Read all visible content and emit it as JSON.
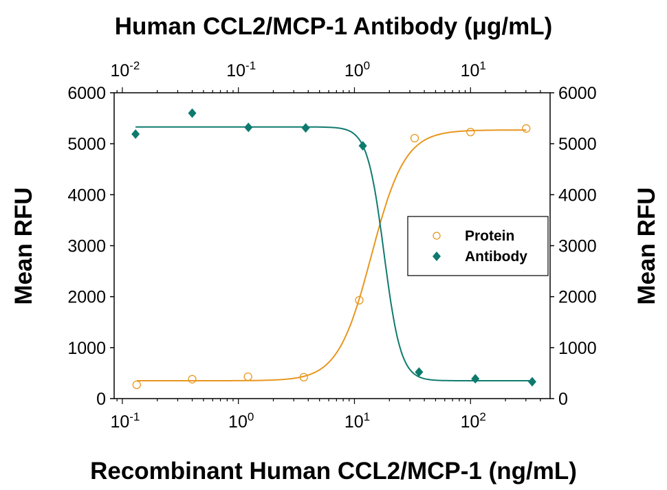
{
  "chart_data": {
    "type": "scatter",
    "title": "Human CCL2/MCP-1 Antibody (μg/mL)",
    "xlabel": "Recombinant Human CCL2/MCP-1 (ng/mL)",
    "ylabel": "Mean RFU",
    "ylabel_right": "Mean RFU",
    "xscale": "log",
    "xlim": [
      0.085,
      485
    ],
    "top_xlim": [
      0.0085,
      48.5
    ],
    "ylim": [
      0,
      6000
    ],
    "yticks": [
      "0",
      "1000",
      "2000",
      "3000",
      "4000",
      "5000",
      "6000"
    ],
    "xticks": [
      {
        "base": "10",
        "exp": "-1",
        "v": 0.1
      },
      {
        "base": "10",
        "exp": "0",
        "v": 1
      },
      {
        "base": "10",
        "exp": "1",
        "v": 10
      },
      {
        "base": "10",
        "exp": "2",
        "v": 100
      }
    ],
    "top_xticks": [
      {
        "base": "10",
        "exp": "-2",
        "v": 0.01
      },
      {
        "base": "10",
        "exp": "-1",
        "v": 0.1
      },
      {
        "base": "10",
        "exp": "0",
        "v": 1
      },
      {
        "base": "10",
        "exp": "1",
        "v": 10
      }
    ],
    "grid": false,
    "legend_position": "center-right",
    "series": [
      {
        "name": "Protein",
        "marker": "open-circle",
        "color": "#E8961E",
        "axis": "bottom",
        "x": [
          0.133,
          0.4,
          1.21,
          3.66,
          11,
          33,
          100,
          302
        ],
        "y": [
          270,
          380,
          430,
          420,
          1930,
          5110,
          5230,
          5300
        ],
        "fit": {
          "bottom": 350,
          "top": 5270,
          "ec50": 14,
          "hill": 3
        }
      },
      {
        "name": "Antibody",
        "marker": "filled-diamond",
        "color": "#0E7A6E",
        "axis": "bottom",
        "x": [
          0.13,
          0.4,
          1.22,
          3.8,
          11.8,
          36,
          110,
          340
        ],
        "y": [
          5190,
          5600,
          5320,
          5310,
          4960,
          520,
          390,
          330
        ],
        "fit": {
          "bottom": 350,
          "top": 5330,
          "ec50": 18,
          "hill": -6
        }
      }
    ]
  }
}
